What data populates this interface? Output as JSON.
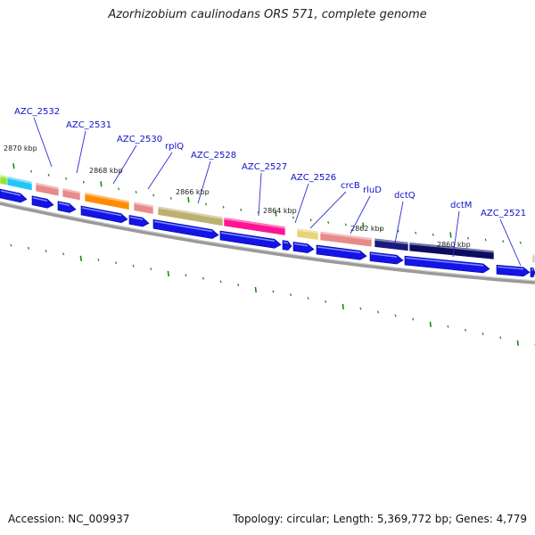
{
  "title": "Azorhizobium caulinodans ORS 571, complete genome",
  "footer": {
    "accession": "Accession: NC_009937",
    "topology": "Topology: circular; Length: 5,369,772 bp; Genes: 4,779"
  },
  "kbp_labels": [
    "2870 kbp",
    "2868 kbp",
    "2866 kbp",
    "2864 kbp",
    "2862 kbp",
    "2860 kbp"
  ],
  "gene_labels": [
    "AZC_2532",
    "AZC_2531",
    "AZC_2530",
    "rplQ",
    "AZC_2528",
    "AZC_2527",
    "AZC_2526",
    "crcB",
    "rluD",
    "dctQ",
    "dctM",
    "AZC_2521"
  ],
  "colors": {
    "cds": "#1414e6",
    "backbone": "#888888",
    "tick": "#1a8a1a",
    "label": "#1010cc"
  }
}
